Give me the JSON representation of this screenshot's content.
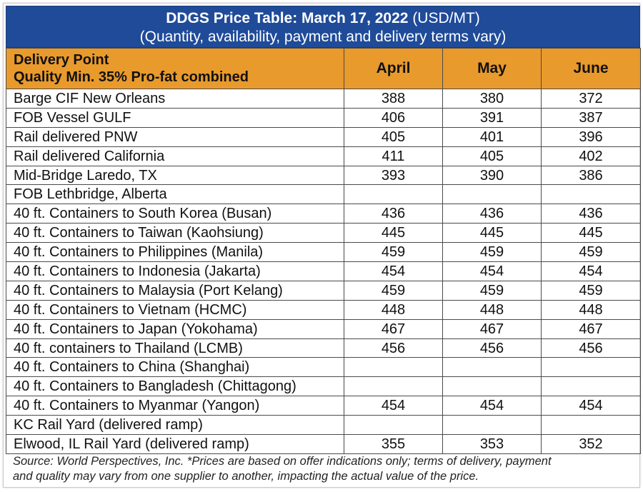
{
  "header": {
    "title_bold": "DDGS Price Table: March 17, 2022",
    "title_units": "(USD/MT)",
    "subtitle": "(Quantity, availability, payment and delivery terms vary)"
  },
  "table": {
    "columns": {
      "point_line1": "Delivery Point",
      "point_line2": "Quality Min. 35% Pro-fat combined",
      "april": "April",
      "may": "May",
      "june": "June"
    },
    "rows": [
      {
        "point": "Barge CIF New Orleans",
        "april": "388",
        "may": "380",
        "june": "372"
      },
      {
        "point": "FOB Vessel GULF",
        "april": "406",
        "may": "391",
        "june": "387"
      },
      {
        "point": "Rail delivered PNW",
        "april": "405",
        "may": "401",
        "june": "396"
      },
      {
        "point": "Rail delivered California",
        "april": "411",
        "may": "405",
        "june": "402"
      },
      {
        "point": "Mid-Bridge Laredo, TX",
        "april": "393",
        "may": "390",
        "june": "386"
      },
      {
        "point": "FOB Lethbridge, Alberta",
        "april": "",
        "may": "",
        "june": ""
      },
      {
        "point": "40 ft. Containers to South Korea (Busan)",
        "april": "436",
        "may": "436",
        "june": "436"
      },
      {
        "point": "40 ft. Containers to Taiwan (Kaohsiung)",
        "april": "445",
        "may": "445",
        "june": "445"
      },
      {
        "point": "40 ft. Containers to Philippines (Manila)",
        "april": "459",
        "may": "459",
        "june": "459"
      },
      {
        "point": "40 ft. Containers to Indonesia (Jakarta)",
        "april": "454",
        "may": "454",
        "june": "454"
      },
      {
        "point": "40 ft. Containers to Malaysia (Port Kelang)",
        "april": "459",
        "may": "459",
        "june": "459"
      },
      {
        "point": "40 ft. Containers to Vietnam (HCMC)",
        "april": "448",
        "may": "448",
        "june": "448"
      },
      {
        "point": "40 ft. Containers to Japan (Yokohama)",
        "april": "467",
        "may": "467",
        "june": "467"
      },
      {
        "point": "40 ft. containers to Thailand (LCMB)",
        "april": "456",
        "may": "456",
        "june": "456"
      },
      {
        "point": "40 ft. Containers to China (Shanghai)",
        "april": "",
        "may": "",
        "june": ""
      },
      {
        "point": "40 ft. Containers to Bangladesh (Chittagong)",
        "april": "",
        "may": "",
        "june": ""
      },
      {
        "point": "40 ft. Containers to Myanmar (Yangon)",
        "april": "454",
        "may": "454",
        "june": "454"
      },
      {
        "point": "KC Rail Yard (delivered ramp)",
        "april": "",
        "may": "",
        "june": ""
      },
      {
        "point": "Elwood, IL Rail Yard (delivered ramp)",
        "april": "355",
        "may": "353",
        "june": "352"
      }
    ]
  },
  "footer": {
    "source_line1": "Source: World Perspectives, Inc. *Prices are based on offer indications only; terms of delivery, payment",
    "source_line2": "and quality may vary from one supplier to another, impacting the actual value of the price."
  },
  "colors": {
    "title_bg": "#1f4b99",
    "header_bg": "#e99a2c",
    "grid": "#4a4a4a"
  }
}
